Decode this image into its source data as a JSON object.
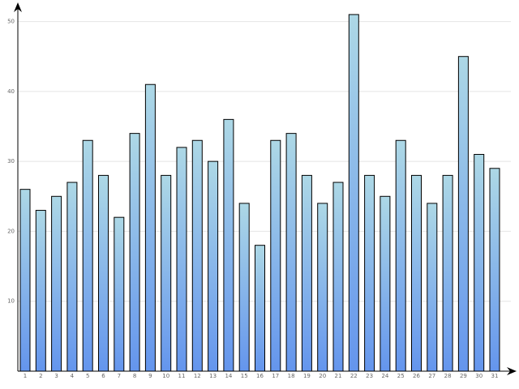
{
  "chart_data": {
    "type": "bar",
    "categories": [
      "1",
      "2",
      "3",
      "4",
      "5",
      "6",
      "7",
      "8",
      "9",
      "10",
      "11",
      "12",
      "13",
      "14",
      "15",
      "16",
      "17",
      "18",
      "19",
      "20",
      "21",
      "22",
      "23",
      "24",
      "25",
      "26",
      "27",
      "28",
      "29",
      "30",
      "31"
    ],
    "values": [
      26,
      23,
      25,
      27,
      33,
      28,
      22,
      34,
      41,
      28,
      32,
      33,
      30,
      36,
      24,
      18,
      33,
      34,
      28,
      24,
      27,
      51,
      28,
      25,
      33,
      28,
      24,
      28,
      45,
      31,
      29
    ],
    "gradient": [
      "#add8e6",
      "#6495ed"
    ],
    "ylim": [
      0,
      52.5
    ],
    "yticks": [
      10,
      20,
      30,
      40,
      50
    ],
    "grid": true
  }
}
